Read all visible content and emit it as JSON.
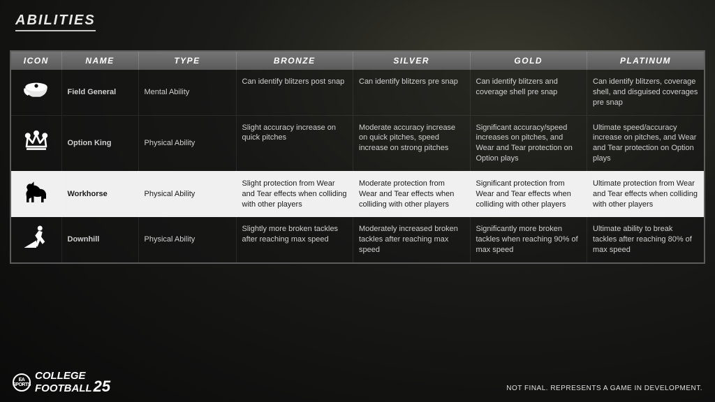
{
  "page_title": "ABILITIES",
  "columns": [
    "ICON",
    "NAME",
    "TYPE",
    "BRONZE",
    "SILVER",
    "GOLD",
    "PLATINUM"
  ],
  "rows": [
    {
      "icon": "general-cap-icon",
      "name": "Field General",
      "type": "Mental Ability",
      "bronze": "Can identify blitzers post snap",
      "silver": "Can identify blitzers pre snap",
      "gold": "Can identify blitzers and coverage shell pre snap",
      "platinum": "Can identify blitzers, coverage shell, and disguised coverages pre snap",
      "highlight": false
    },
    {
      "icon": "crown-icon",
      "name": "Option King",
      "type": "Physical Ability",
      "bronze": "Slight accuracy increase on quick pitches",
      "silver": "Moderate accuracy increase on quick pitches, speed increase on strong pitches",
      "gold": "Significant accuracy/speed increases on pitches, and Wear and Tear protection on Option plays",
      "platinum": "Ultimate speed/accuracy increase on pitches, and Wear and Tear protection on Option plays",
      "highlight": false
    },
    {
      "icon": "horse-icon",
      "name": "Workhorse",
      "type": "Physical Ability",
      "bronze": "Slight protection from Wear and Tear effects when colliding with other players",
      "silver": "Moderate protection from Wear and Tear effects when colliding with other players",
      "gold": "Significant protection from Wear and Tear effects when colliding with other players",
      "platinum": "Ultimate protection from Wear and Tear effects when colliding with other players",
      "highlight": true
    },
    {
      "icon": "runner-icon",
      "name": "Downhill",
      "type": "Physical Ability",
      "bronze": "Slightly more broken tackles after reaching max speed",
      "silver": "Moderately increased broken tackles after reaching max speed",
      "gold": "Significantly more broken tackles when reaching 90% of max speed",
      "platinum": "Ultimate ability to break tackles after reaching 80% of max speed",
      "highlight": false
    }
  ],
  "logo": {
    "brand": "EA SPORTS",
    "line1": "COLLEGE",
    "line2": "FOOTBALL",
    "year": "25"
  },
  "disclaimer": "NOT FINAL. REPRESENTS A GAME IN DEVELOPMENT."
}
